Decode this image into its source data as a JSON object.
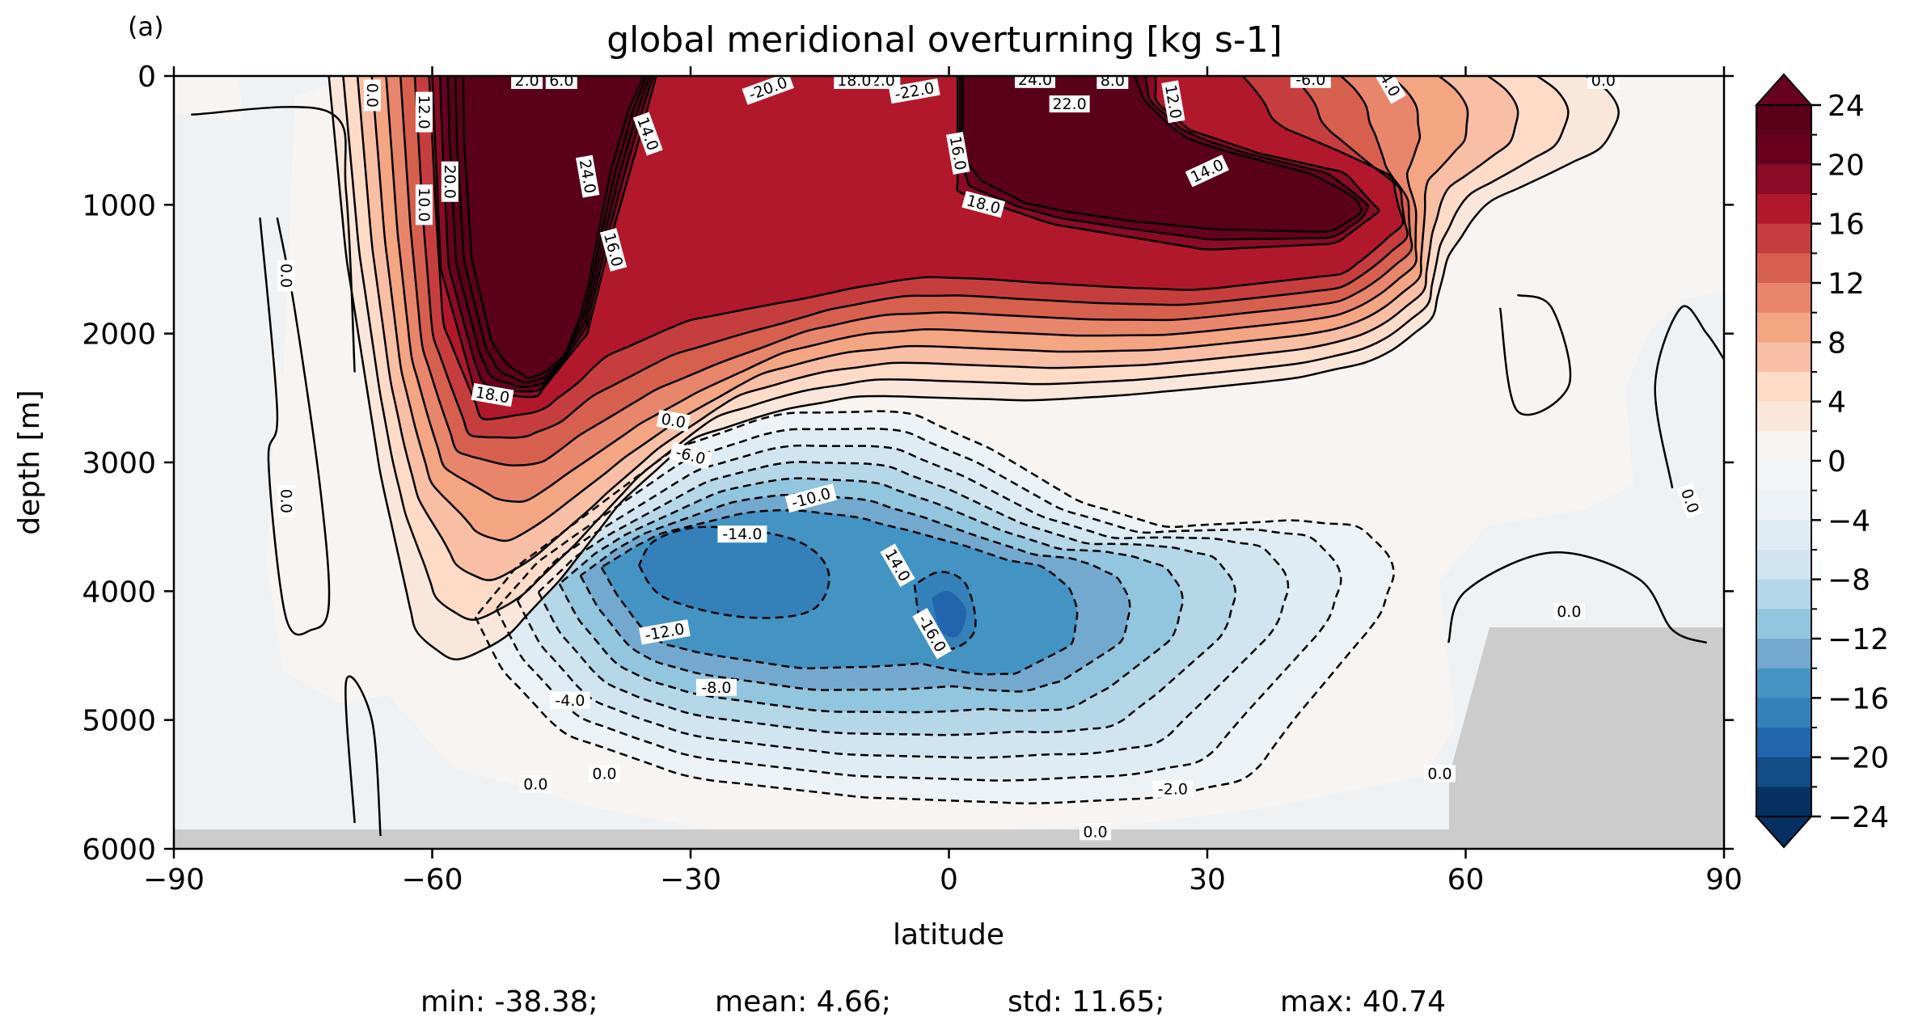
{
  "panel_label": "(a)",
  "chart_data": {
    "type": "contour",
    "title": "global meridional overturning [kg s-1]",
    "xlabel": "latitude",
    "ylabel": "depth [m]",
    "xlim": [
      -90,
      90
    ],
    "ylim": [
      6000,
      0
    ],
    "x_ticks": [
      -90,
      -60,
      -30,
      0,
      30,
      60,
      90
    ],
    "x_tick_labels": [
      "−90",
      "−60",
      "−30",
      "0",
      "30",
      "60",
      "90"
    ],
    "y_ticks": [
      0,
      1000,
      2000,
      3000,
      4000,
      5000,
      6000
    ],
    "y_tick_labels": [
      "0",
      "1000",
      "2000",
      "3000",
      "4000",
      "5000",
      "6000"
    ],
    "colorbar": {
      "colormap": "RdBu_r",
      "range": [
        -24,
        24
      ],
      "levels": 24,
      "extend": "both",
      "ticks": [
        24,
        20,
        16,
        12,
        8,
        4,
        0,
        -4,
        -8,
        -12,
        -16,
        -20,
        -24
      ],
      "tick_labels": [
        "24",
        "20",
        "16",
        "12",
        "8",
        "4",
        "0",
        "−4",
        "−8",
        "−12",
        "−16",
        "−20",
        "−24"
      ],
      "colors": [
        "#053061",
        "#134c87",
        "#2166ac",
        "#3480b9",
        "#4393c3",
        "#74a9cf",
        "#92c5de",
        "#b5d7e8",
        "#d1e5f0",
        "#e0ecf3",
        "#ecf2f5",
        "#f3f6f8",
        "#f8f4f2",
        "#fae7dc",
        "#fddbc7",
        "#f8bfa4",
        "#f4a582",
        "#e8866c",
        "#d6604d",
        "#c53e3d",
        "#b2182b",
        "#8a0b25",
        "#67001f",
        "#5a0019"
      ]
    },
    "contour_labels": [
      {
        "text": "0.0",
        "lat": -77,
        "depth": 1550,
        "rot": 90
      },
      {
        "text": "0.0",
        "lat": -77,
        "depth": 3300,
        "rot": 90
      },
      {
        "text": "0.0",
        "lat": 86,
        "depth": 3300,
        "rot": 70
      },
      {
        "text": "0.0",
        "lat": -67,
        "depth": 150,
        "rot": 90
      },
      {
        "text": "12.0",
        "lat": -61,
        "depth": 280,
        "rot": 90
      },
      {
        "text": "20.0",
        "lat": -58,
        "depth": 820,
        "rot": 90
      },
      {
        "text": "10.0",
        "lat": -61,
        "depth": 1000,
        "rot": 90
      },
      {
        "text": "2.0",
        "lat": -49,
        "depth": 0,
        "rot": 0
      },
      {
        "text": "6.0",
        "lat": -45,
        "depth": 0,
        "rot": 0
      },
      {
        "text": "14.0",
        "lat": -35,
        "depth": 450,
        "rot": 70
      },
      {
        "text": "24.0",
        "lat": -42,
        "depth": 780,
        "rot": 80
      },
      {
        "text": "16.0",
        "lat": -39,
        "depth": 1350,
        "rot": 75
      },
      {
        "text": "18.0",
        "lat": -53,
        "depth": 2480,
        "rot": 10
      },
      {
        "text": "-2.0",
        "lat": -8,
        "depth": 0,
        "rot": 0
      },
      {
        "text": "-20.0",
        "lat": -21,
        "depth": 100,
        "rot": -20
      },
      {
        "text": "-22.0",
        "lat": -4,
        "depth": 120,
        "rot": -10
      },
      {
        "text": "18.0",
        "lat": -11,
        "depth": 0,
        "rot": 0
      },
      {
        "text": "22.0",
        "lat": 14,
        "depth": 220,
        "rot": 0
      },
      {
        "text": "24.0",
        "lat": 10,
        "depth": 30,
        "rot": 0
      },
      {
        "text": "8.0",
        "lat": 19,
        "depth": 0,
        "rot": 0
      },
      {
        "text": "16.0",
        "lat": 1,
        "depth": 600,
        "rot": 80
      },
      {
        "text": "18.0",
        "lat": 4,
        "depth": 1000,
        "rot": 15
      },
      {
        "text": "12.0",
        "lat": 26,
        "depth": 200,
        "rot": 80
      },
      {
        "text": "14.0",
        "lat": 30,
        "depth": 740,
        "rot": -25
      },
      {
        "text": "-6.0",
        "lat": 42,
        "depth": 30,
        "rot": 0
      },
      {
        "text": "-4.0",
        "lat": 51,
        "depth": 50,
        "rot": 60
      },
      {
        "text": "0.0",
        "lat": 76,
        "depth": 0,
        "rot": 0
      },
      {
        "text": "0.0",
        "lat": -32,
        "depth": 2680,
        "rot": 10
      },
      {
        "text": "-6.0",
        "lat": -30,
        "depth": 2950,
        "rot": 15
      },
      {
        "text": "-10.0",
        "lat": -16,
        "depth": 3280,
        "rot": -15
      },
      {
        "text": "-14.0",
        "lat": -24,
        "depth": 3560,
        "rot": 0
      },
      {
        "text": "14.0",
        "lat": -6,
        "depth": 3800,
        "rot": 60
      },
      {
        "text": "-16.0",
        "lat": -2,
        "depth": 4330,
        "rot": 60
      },
      {
        "text": "-12.0",
        "lat": -33,
        "depth": 4320,
        "rot": -10
      },
      {
        "text": "-8.0",
        "lat": -27,
        "depth": 4750,
        "rot": 0
      },
      {
        "text": "-4.0",
        "lat": -44,
        "depth": 4850,
        "rot": 0
      },
      {
        "text": "0.0",
        "lat": -48,
        "depth": 5500,
        "rot": 0
      },
      {
        "text": "0.0",
        "lat": -40,
        "depth": 5420,
        "rot": 0
      },
      {
        "text": "-2.0",
        "lat": 26,
        "depth": 5540,
        "rot": 0
      },
      {
        "text": "0.0",
        "lat": 17,
        "depth": 5870,
        "rot": 0
      },
      {
        "text": "0.0",
        "lat": 57,
        "depth": 5420,
        "rot": 0
      },
      {
        "text": "0.0",
        "lat": 72,
        "depth": 4160,
        "rot": 0
      }
    ]
  },
  "stats": {
    "min": "min: -38.38;",
    "mean": "mean: 4.66;",
    "std": "std: 11.65;",
    "max": "max: 40.74"
  }
}
